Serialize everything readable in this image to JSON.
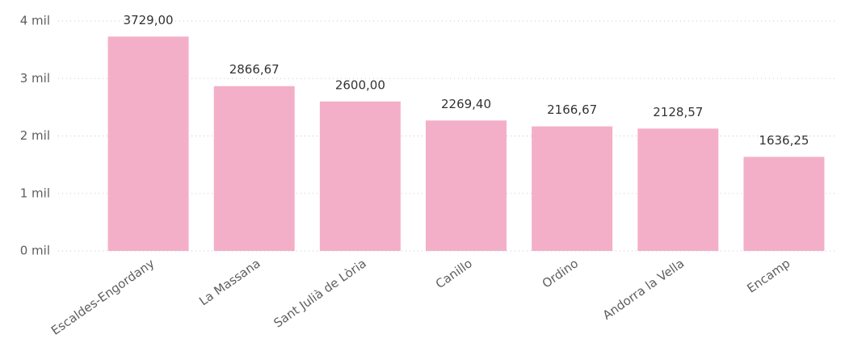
{
  "chart_data": {
    "type": "bar",
    "categories": [
      "Escaldes-Engordany",
      "La Massana",
      "Sant Julià de Lòria",
      "Canillo",
      "Ordino",
      "Andorra la Vella",
      "Encamp"
    ],
    "values": [
      3729,
      2866.67,
      2600,
      2269.4,
      2166.67,
      2128.57,
      1636.25
    ],
    "value_labels": [
      "3729,00",
      "2866,67",
      "2600,00",
      "2269,40",
      "2166,67",
      "2128,57",
      "1636,25"
    ],
    "color": "#f4afc8",
    "ylim": [
      0,
      4000
    ],
    "yticks": [
      {
        "value": 0,
        "label": "0 mil"
      },
      {
        "value": 1000,
        "label": "1 mil"
      },
      {
        "value": 2000,
        "label": "2 mil"
      },
      {
        "value": 3000,
        "label": "3 mil"
      },
      {
        "value": 4000,
        "label": "4 mil"
      }
    ],
    "grid": true
  }
}
